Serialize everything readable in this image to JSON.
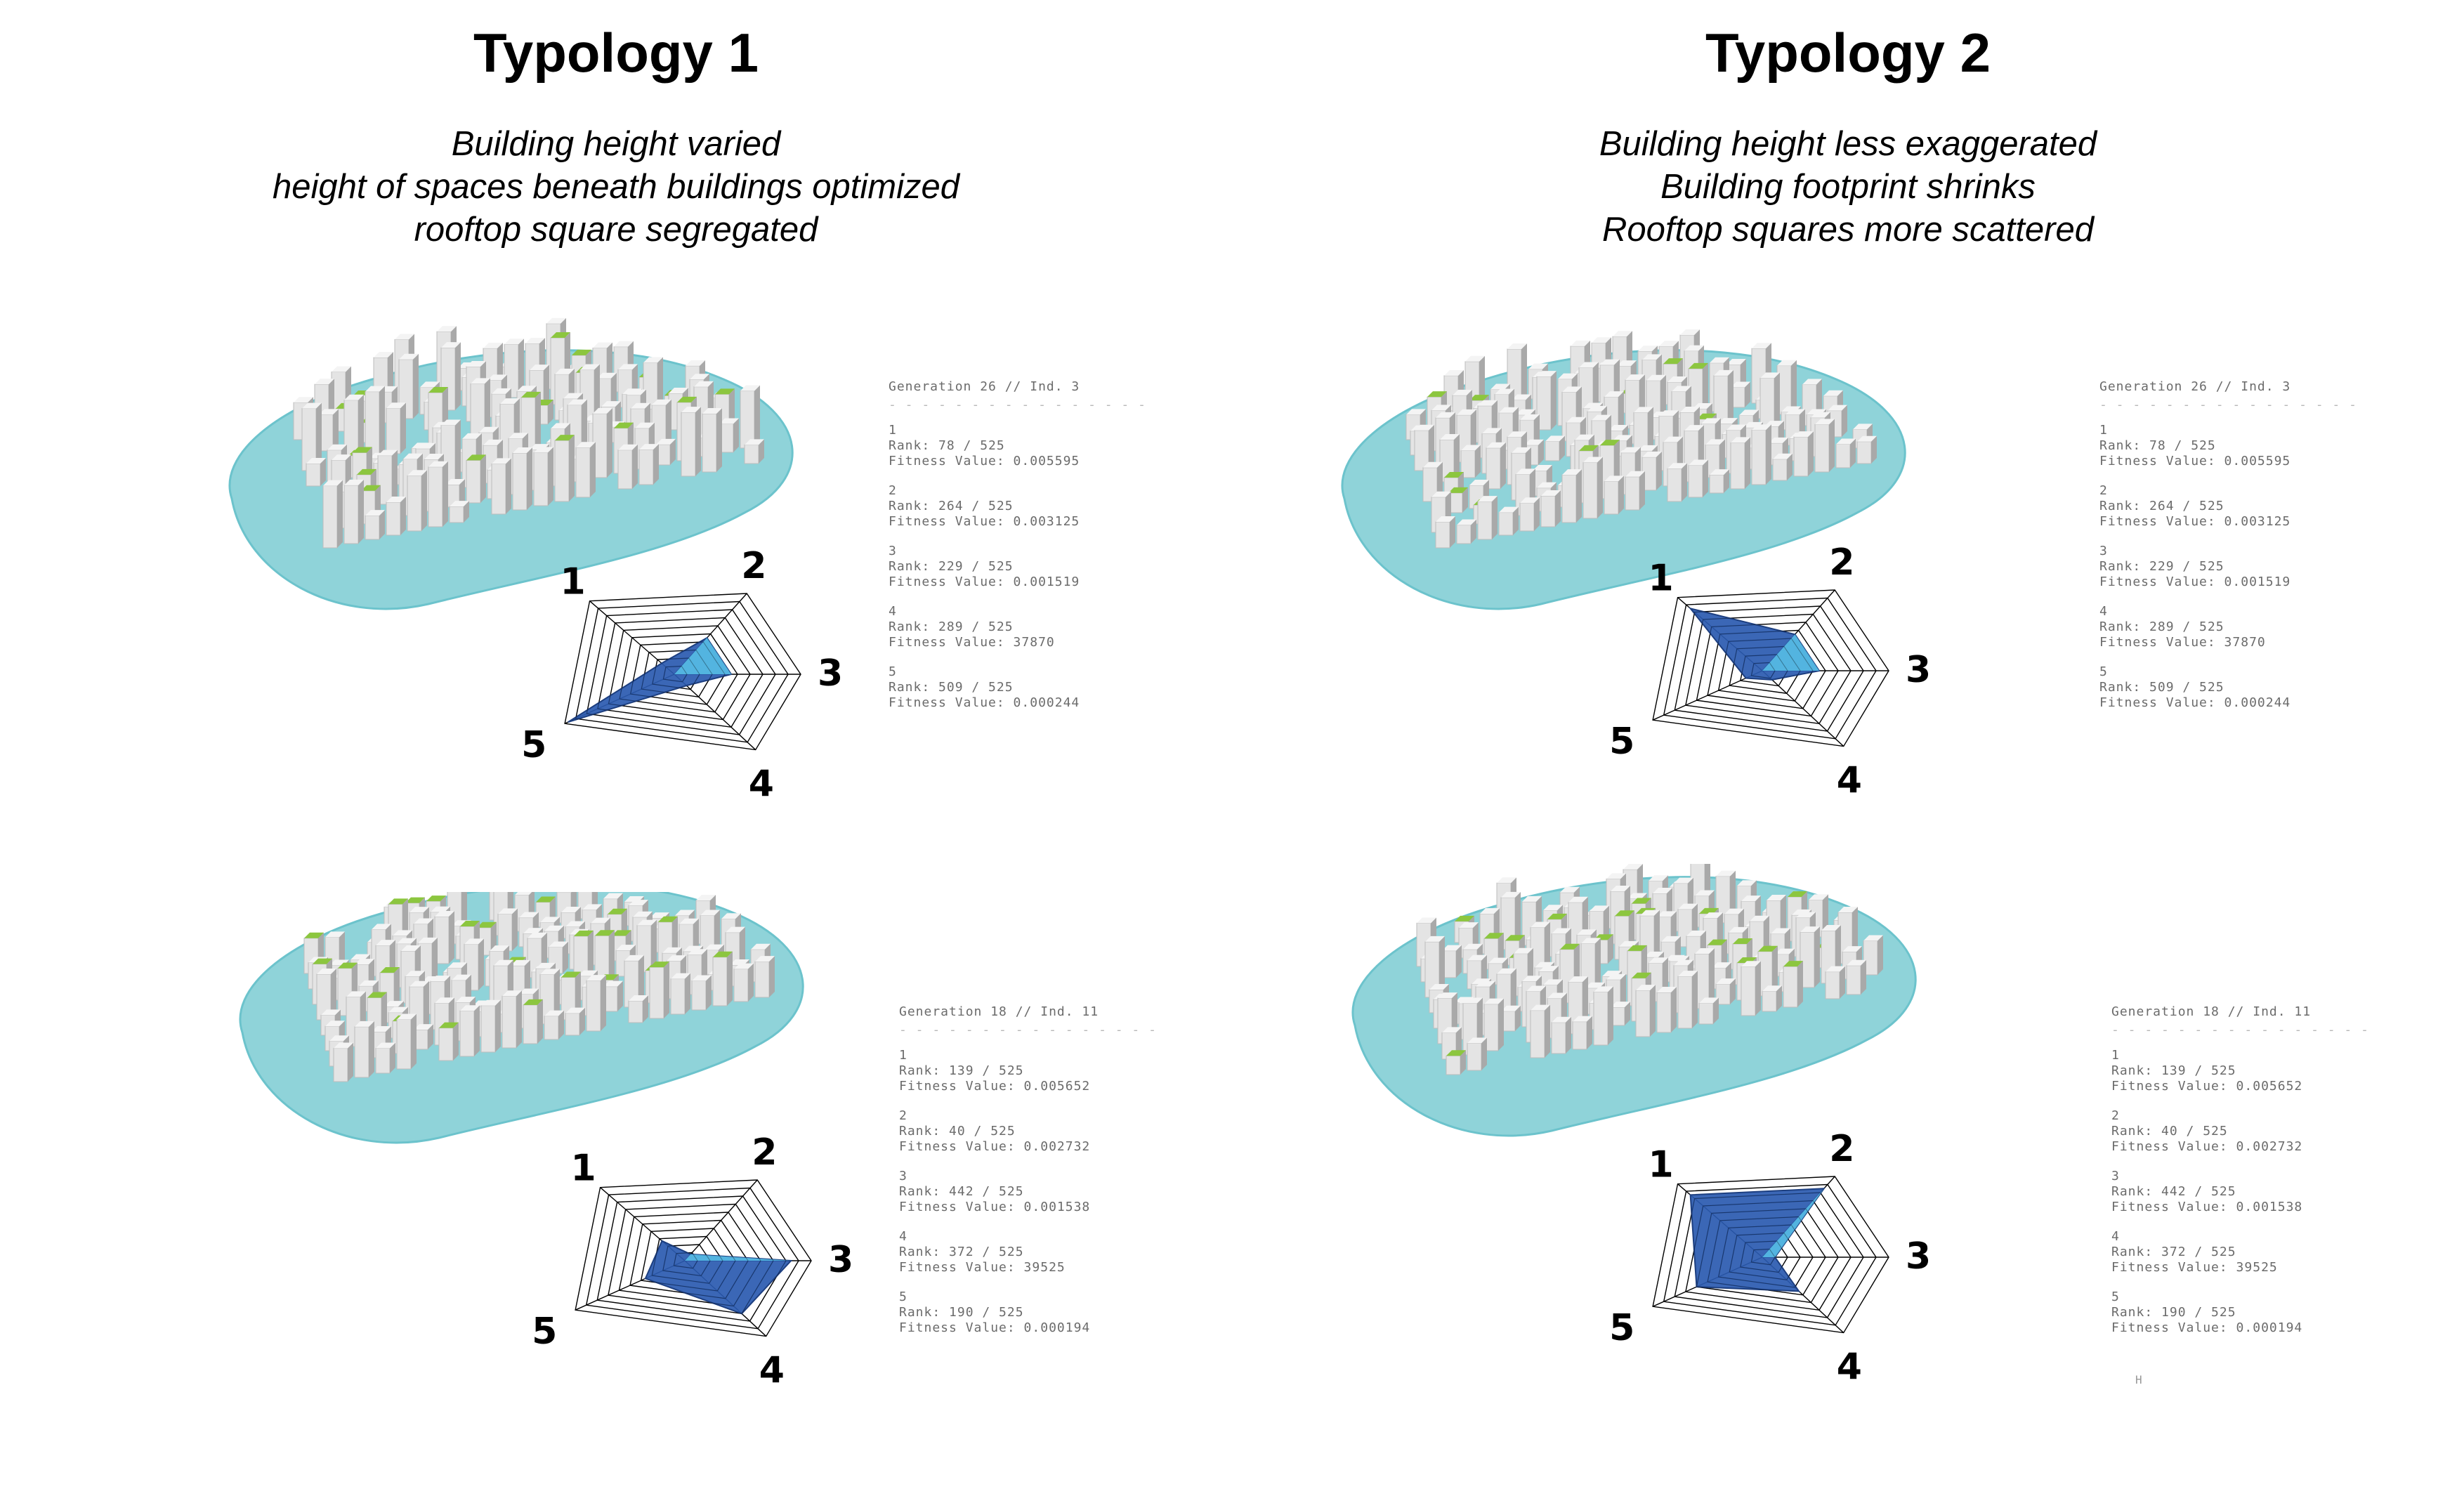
{
  "typologies": [
    {
      "title": "Typology 1",
      "subtitle": [
        "Building height varied",
        "height of spaces beneath buildings optimized",
        "rooftop square segregated"
      ],
      "panels": [
        {
          "generation": "Generation 26 // Ind. 3",
          "separator": "- - - - - - - - - - - - - - - -",
          "entries": [
            {
              "num": "1",
              "rank": "Rank: 78 / 525",
              "fitness": "Fitness Value: 0.005595"
            },
            {
              "num": "2",
              "rank": "Rank: 264 / 525",
              "fitness": "Fitness Value: 0.003125"
            },
            {
              "num": "3",
              "rank": "Rank: 229 / 525",
              "fitness": "Fitness Value: 0.001519"
            },
            {
              "num": "4",
              "rank": "Rank: 289 / 525",
              "fitness": "Fitness Value: 37870"
            },
            {
              "num": "5",
              "rank": "Rank: 509 / 525",
              "fitness": "Fitness Value: 0.000244"
            }
          ],
          "radar_axes": [
            "1",
            "2",
            "3",
            "4",
            "5"
          ],
          "radar_levels": [
            0.15,
            0.45,
            0.45,
            0.15,
            0.97
          ]
        },
        {
          "generation": "Generation 18 // Ind. 11",
          "separator": "- - - - - - - - - - - - - - - -",
          "entries": [
            {
              "num": "1",
              "rank": "Rank: 139 / 525",
              "fitness": "Fitness Value: 0.005652"
            },
            {
              "num": "2",
              "rank": "Rank: 40 / 525",
              "fitness": "Fitness Value: 0.002732"
            },
            {
              "num": "3",
              "rank": "Rank: 442 / 525",
              "fitness": "Fitness Value: 0.001538"
            },
            {
              "num": "4",
              "rank": "Rank: 372 / 525",
              "fitness": "Fitness Value: 39525"
            },
            {
              "num": "5",
              "rank": "Rank: 190 / 525",
              "fitness": "Fitness Value: 0.000194"
            }
          ],
          "radar_axes": [
            "1",
            "2",
            "3",
            "4",
            "5"
          ],
          "radar_levels": [
            0.27,
            0.08,
            0.84,
            0.7,
            0.36
          ]
        }
      ]
    },
    {
      "title": "Typology 2",
      "subtitle": [
        "Building height less exaggerated",
        "Building footprint shrinks",
        "Rooftop squares more scattered"
      ],
      "panels": [
        {
          "generation": "Generation 26 // Ind. 3",
          "separator": "- - - - - - - - - - - - - - - -",
          "entries": [
            {
              "num": "1",
              "rank": "Rank: 78 / 525",
              "fitness": "Fitness Value: 0.005595"
            },
            {
              "num": "2",
              "rank": "Rank: 264 / 525",
              "fitness": "Fitness Value: 0.003125"
            },
            {
              "num": "3",
              "rank": "Rank: 229 / 525",
              "fitness": "Fitness Value: 0.001519"
            },
            {
              "num": "4",
              "rank": "Rank: 289 / 525",
              "fitness": "Fitness Value: 37870"
            },
            {
              "num": "5",
              "rank": "Rank: 509 / 525",
              "fitness": "Fitness Value: 0.000244"
            }
          ],
          "radar_axes": [
            "1",
            "2",
            "3",
            "4",
            "5"
          ],
          "radar_levels": [
            0.85,
            0.45,
            0.45,
            0.12,
            0.15
          ]
        },
        {
          "generation": "Generation 18 // Ind. 11",
          "separator": "- - - - - - - - - - - - - - - -",
          "entries": [
            {
              "num": "1",
              "rank": "Rank: 139 / 525",
              "fitness": "Fitness Value: 0.005652"
            },
            {
              "num": "2",
              "rank": "Rank: 40 / 525",
              "fitness": "Fitness Value: 0.002732"
            },
            {
              "num": "3",
              "rank": "Rank: 442 / 525",
              "fitness": "Fitness Value: 0.001538"
            },
            {
              "num": "4",
              "rank": "Rank: 372 / 525",
              "fitness": "Fitness Value: 39525"
            },
            {
              "num": "5",
              "rank": "Rank: 190 / 525",
              "fitness": "Fitness Value: 0.000194"
            }
          ],
          "radar_axes": [
            "1",
            "2",
            "3",
            "4",
            "5"
          ],
          "radar_levels": [
            0.85,
            0.85,
            0.1,
            0.45,
            0.6
          ]
        }
      ]
    }
  ],
  "footer_mark": "H",
  "colors": {
    "water": "#8fd3d9",
    "water_edge": "#6cc3cc",
    "building": "#e4e4e4",
    "building_side": "#a9a9a9",
    "roof_green": "#8cc63f",
    "radar_fill": "#2a5ab0",
    "radar_fill_light": "#58c2e8",
    "radar_grid": "#000000"
  },
  "icons": [
    "city-model-icon",
    "radar-chart"
  ]
}
